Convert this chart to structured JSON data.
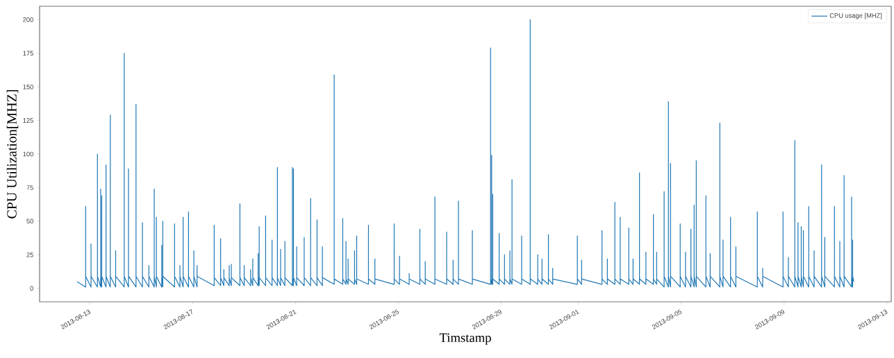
{
  "chart_data": {
    "type": "line",
    "xlabel": "Timstamp",
    "ylabel": "CPU Utilization[MHZ]",
    "x": [
      "2013-08-12T12:00",
      "2013-08-12T20:00",
      "2013-08-12T20:00",
      "2013-08-12T20:00",
      "2013-08-13T01:00",
      "2013-08-13T01:00",
      "2013-08-13T01:00",
      "2013-08-13T07:00",
      "2013-08-13T07:00",
      "2013-08-13T07:00",
      "2013-08-13T10:00",
      "2013-08-13T10:00",
      "2013-08-13T10:00",
      "2013-08-13T11:00",
      "2013-08-13T11:00",
      "2013-08-13T11:00",
      "2013-08-13T15:00",
      "2013-08-13T15:00",
      "2013-08-13T15:00",
      "2013-08-13T19:00",
      "2013-08-13T19:00",
      "2013-08-13T19:00",
      "2013-08-14T00:00",
      "2013-08-14T00:00",
      "2013-08-14T00:00",
      "2013-08-14T08:00",
      "2013-08-14T08:00",
      "2013-08-14T08:00",
      "2013-08-14T12:00",
      "2013-08-14T12:00",
      "2013-08-14T12:00",
      "2013-08-14T19:00",
      "2013-08-14T19:00",
      "2013-08-14T19:00",
      "2013-08-15T01:00",
      "2013-08-15T01:00",
      "2013-08-15T01:00",
      "2013-08-15T07:00",
      "2013-08-15T07:00",
      "2013-08-15T07:00",
      "2013-08-15T12:00",
      "2013-08-15T12:00",
      "2013-08-15T12:00",
      "2013-08-15T14:00",
      "2013-08-15T14:00",
      "2013-08-15T14:00",
      "2013-08-15T19:00",
      "2013-08-15T19:00",
      "2013-08-15T19:00",
      "2013-08-15T20:00",
      "2013-08-15T20:00",
      "2013-08-15T20:00",
      "2013-08-16T07:00",
      "2013-08-16T07:00",
      "2013-08-16T07:00",
      "2013-08-16T12:00",
      "2013-08-16T12:00",
      "2013-08-16T12:00",
      "2013-08-16T15:00",
      "2013-08-16T15:00",
      "2013-08-16T15:00",
      "2013-08-16T20:00",
      "2013-08-16T20:00",
      "2013-08-16T20:00",
      "2013-08-17T01:00",
      "2013-08-17T01:00",
      "2013-08-17T01:00",
      "2013-08-17T04:00",
      "2013-08-17T04:00",
      "2013-08-17T04:00",
      "2013-08-17T20:00",
      "2013-08-17T20:00",
      "2013-08-17T20:00",
      "2013-08-18T02:00",
      "2013-08-18T02:00",
      "2013-08-18T02:00",
      "2013-08-18T05:00",
      "2013-08-18T05:00",
      "2013-08-18T05:00",
      "2013-08-18T10:00",
      "2013-08-18T10:00",
      "2013-08-18T10:00",
      "2013-08-18T12:00",
      "2013-08-18T12:00",
      "2013-08-18T12:00",
      "2013-08-18T20:00",
      "2013-08-18T20:00",
      "2013-08-18T20:00",
      "2013-08-19T00:00",
      "2013-08-19T00:00",
      "2013-08-19T00:00",
      "2013-08-19T06:00",
      "2013-08-19T06:00",
      "2013-08-19T06:00",
      "2013-08-19T08:00",
      "2013-08-19T08:00",
      "2013-08-19T08:00",
      "2013-08-19T13:00",
      "2013-08-19T13:00",
      "2013-08-19T13:00",
      "2013-08-19T14:00",
      "2013-08-19T14:00",
      "2013-08-19T14:00",
      "2013-08-19T20:00",
      "2013-08-19T20:00",
      "2013-08-19T20:00",
      "2013-08-20T02:00",
      "2013-08-20T02:00",
      "2013-08-20T02:00",
      "2013-08-20T07:00",
      "2013-08-20T07:00",
      "2013-08-20T07:00",
      "2013-08-20T10:00",
      "2013-08-20T10:00",
      "2013-08-20T10:00",
      "2013-08-20T14:00",
      "2013-08-20T14:00",
      "2013-08-20T14:00",
      "2013-08-20T21:00",
      "2013-08-20T21:00",
      "2013-08-20T21:00",
      "2013-08-20T22:00",
      "2013-08-20T22:00",
      "2013-08-20T22:00",
      "2013-08-21T01:00",
      "2013-08-21T01:00",
      "2013-08-21T01:00",
      "2013-08-21T08:00",
      "2013-08-21T08:00",
      "2013-08-21T08:00",
      "2013-08-21T14:00",
      "2013-08-21T14:00",
      "2013-08-21T14:00",
      "2013-08-21T20:00",
      "2013-08-21T20:00",
      "2013-08-21T20:00",
      "2013-08-22T01:00",
      "2013-08-22T01:00",
      "2013-08-22T01:00",
      "2013-08-22T12:00",
      "2013-08-22T12:00",
      "2013-08-22T12:00",
      "2013-08-22T20:00",
      "2013-08-22T20:00",
      "2013-08-22T20:00",
      "2013-08-22T23:00",
      "2013-08-22T23:00",
      "2013-08-22T23:00",
      "2013-08-23T01:00",
      "2013-08-23T01:00",
      "2013-08-23T01:00",
      "2013-08-23T07:00",
      "2013-08-23T07:00",
      "2013-08-23T07:00",
      "2013-08-23T09:00",
      "2013-08-23T09:00",
      "2013-08-23T09:00",
      "2013-08-23T20:00",
      "2013-08-23T20:00",
      "2013-08-23T20:00",
      "2013-08-24T02:00",
      "2013-08-24T02:00",
      "2013-08-24T02:00",
      "2013-08-24T20:00",
      "2013-08-24T20:00",
      "2013-08-24T20:00",
      "2013-08-25T01:00",
      "2013-08-25T01:00",
      "2013-08-25T01:00",
      "2013-08-25T10:00",
      "2013-08-25T10:00",
      "2013-08-25T10:00",
      "2013-08-25T20:00",
      "2013-08-25T20:00",
      "2013-08-25T20:00",
      "2013-08-26T01:00",
      "2013-08-26T01:00",
      "2013-08-26T01:00",
      "2013-08-26T10:00",
      "2013-08-26T10:00",
      "2013-08-26T10:00",
      "2013-08-26T21:00",
      "2013-08-26T21:00",
      "2013-08-26T21:00",
      "2013-08-27T03:00",
      "2013-08-27T03:00",
      "2013-08-27T03:00",
      "2013-08-27T08:00",
      "2013-08-27T08:00",
      "2013-08-27T08:00",
      "2013-08-27T21:00",
      "2013-08-27T21:00",
      "2013-08-27T21:00",
      "2013-08-28T14:00",
      "2013-08-28T14:00",
      "2013-08-28T14:00",
      "2013-08-28T15:00",
      "2013-08-28T15:00",
      "2013-08-28T15:00",
      "2013-08-28T16:00",
      "2013-08-28T16:00",
      "2013-08-28T16:00",
      "2013-08-28T22:00",
      "2013-08-28T22:00",
      "2013-08-28T22:00",
      "2013-08-29T03:00",
      "2013-08-29T03:00",
      "2013-08-29T03:00",
      "2013-08-29T08:00",
      "2013-08-29T08:00",
      "2013-08-29T08:00",
      "2013-08-29T10:00",
      "2013-08-29T10:00",
      "2013-08-29T10:00",
      "2013-08-29T19:00",
      "2013-08-29T19:00",
      "2013-08-29T19:00",
      "2013-08-30T03:00",
      "2013-08-30T03:00",
      "2013-08-30T03:00",
      "2013-08-30T10:00",
      "2013-08-30T10:00",
      "2013-08-30T10:00",
      "2013-08-30T14:00",
      "2013-08-30T14:00",
      "2013-08-30T14:00",
      "2013-08-30T20:00",
      "2013-08-30T20:00",
      "2013-08-30T20:00",
      "2013-08-31T00:00",
      "2013-08-31T00:00",
      "2013-08-31T00:00",
      "2013-08-31T23:00",
      "2013-08-31T23:00",
      "2013-08-31T23:00",
      "2013-09-01T03:00",
      "2013-09-01T03:00",
      "2013-09-01T03:00",
      "2013-09-01T22:00",
      "2013-09-01T22:00",
      "2013-09-01T22:00",
      "2013-09-02T03:00",
      "2013-09-02T03:00",
      "2013-09-02T03:00",
      "2013-09-02T10:00",
      "2013-09-02T10:00",
      "2013-09-02T10:00",
      "2013-09-02T15:00",
      "2013-09-02T15:00",
      "2013-09-02T15:00",
      "2013-09-02T23:00",
      "2013-09-02T23:00",
      "2013-09-02T23:00",
      "2013-09-03T03:00",
      "2013-09-03T03:00",
      "2013-09-03T03:00",
      "2013-09-03T09:00",
      "2013-09-03T09:00",
      "2013-09-03T09:00",
      "2013-09-03T15:00",
      "2013-09-03T15:00",
      "2013-09-03T15:00",
      "2013-09-03T22:00",
      "2013-09-03T22:00",
      "2013-09-03T22:00",
      "2013-09-04T01:00",
      "2013-09-04T01:00",
      "2013-09-04T01:00",
      "2013-09-04T08:00",
      "2013-09-04T08:00",
      "2013-09-04T08:00",
      "2013-09-04T12:00",
      "2013-09-04T12:00",
      "2013-09-04T12:00",
      "2013-09-04T14:00",
      "2013-09-04T14:00",
      "2013-09-04T14:00",
      "2013-09-04T23:00",
      "2013-09-04T23:00",
      "2013-09-04T23:00",
      "2013-09-05T04:00",
      "2013-09-05T04:00",
      "2013-09-05T04:00",
      "2013-09-05T09:00",
      "2013-09-05T09:00",
      "2013-09-05T09:00",
      "2013-09-05T12:00",
      "2013-09-05T12:00",
      "2013-09-05T12:00",
      "2013-09-05T14:00",
      "2013-09-05T14:00",
      "2013-09-05T14:00",
      "2013-09-05T23:00",
      "2013-09-05T23:00",
      "2013-09-05T23:00",
      "2013-09-06T03:00",
      "2013-09-06T03:00",
      "2013-09-06T03:00",
      "2013-09-06T12:00",
      "2013-09-06T12:00",
      "2013-09-06T12:00",
      "2013-09-06T15:00",
      "2013-09-06T15:00",
      "2013-09-06T15:00",
      "2013-09-06T22:00",
      "2013-09-06T22:00",
      "2013-09-06T22:00",
      "2013-09-07T03:00",
      "2013-09-07T03:00",
      "2013-09-07T03:00",
      "2013-09-07T23:00",
      "2013-09-07T23:00",
      "2013-09-07T23:00",
      "2013-09-08T04:00",
      "2013-09-08T04:00",
      "2013-09-08T04:00",
      "2013-09-08T23:00",
      "2013-09-08T23:00",
      "2013-09-08T23:00",
      "2013-09-09T04:00",
      "2013-09-09T04:00",
      "2013-09-09T04:00",
      "2013-09-09T10:00",
      "2013-09-09T10:00",
      "2013-09-09T10:00",
      "2013-09-09T13:00",
      "2013-09-09T13:00",
      "2013-09-09T13:00",
      "2013-09-09T16:00",
      "2013-09-09T16:00",
      "2013-09-09T16:00",
      "2013-09-09T18:00",
      "2013-09-09T18:00",
      "2013-09-09T18:00",
      "2013-09-09T23:00",
      "2013-09-09T23:00",
      "2013-09-09T23:00",
      "2013-09-10T04:00",
      "2013-09-10T04:00",
      "2013-09-10T04:00",
      "2013-09-10T11:00",
      "2013-09-10T11:00",
      "2013-09-10T11:00",
      "2013-09-10T14:00",
      "2013-09-10T14:00",
      "2013-09-10T14:00",
      "2013-09-10T23:00",
      "2013-09-10T23:00",
      "2013-09-10T23:00",
      "2013-09-11T04:00",
      "2013-09-11T04:00",
      "2013-09-11T04:00",
      "2013-09-11T08:00",
      "2013-09-11T08:00",
      "2013-09-11T08:00",
      "2013-09-11T15:00",
      "2013-09-11T15:00",
      "2013-09-11T15:00",
      "2013-09-11T16:00",
      "2013-09-11T16:00",
      "2013-09-11T16:00",
      "2013-09-11T17:00"
    ],
    "series": [
      {
        "name": "CPU usage [MHZ]",
        "color": "#1f77b4",
        "values": [
          5,
          1,
          61,
          9,
          1,
          33,
          9,
          1,
          100,
          9,
          1,
          74,
          9,
          1,
          69,
          9,
          1,
          92,
          9,
          1,
          129,
          9,
          1,
          28,
          9,
          1,
          175,
          9,
          1,
          89,
          9,
          1,
          137,
          9,
          1,
          49,
          9,
          1,
          17,
          9,
          1,
          74,
          9,
          1,
          53,
          9,
          1,
          32,
          9,
          1,
          50,
          9,
          1,
          48,
          9,
          1,
          17,
          9,
          1,
          53,
          9,
          1,
          57,
          9,
          1,
          28,
          9,
          1,
          17,
          9,
          2,
          47,
          8,
          2,
          37,
          8,
          2,
          14,
          8,
          2,
          17,
          8,
          2,
          18,
          8,
          2,
          63,
          8,
          2,
          17,
          8,
          2,
          14,
          8,
          2,
          22,
          8,
          2,
          26,
          8,
          2,
          46,
          8,
          2,
          54,
          8,
          2,
          36,
          8,
          2,
          90,
          8,
          2,
          29,
          8,
          2,
          35,
          8,
          2,
          90,
          8,
          2,
          89,
          8,
          2,
          31,
          8,
          2,
          38,
          8,
          2,
          67,
          8,
          2,
          51,
          8,
          2,
          31,
          8,
          3,
          159,
          7,
          3,
          52,
          7,
          3,
          35,
          7,
          3,
          22,
          7,
          3,
          28,
          7,
          3,
          39,
          7,
          3,
          47,
          7,
          3,
          22,
          7,
          3,
          48,
          7,
          3,
          24,
          7,
          3,
          11,
          7,
          3,
          44,
          7,
          3,
          20,
          7,
          3,
          68,
          7,
          3,
          42,
          7,
          3,
          21,
          7,
          3,
          65,
          7,
          3,
          43,
          7,
          3,
          179,
          7,
          3,
          99,
          7,
          3,
          70,
          7,
          3,
          41,
          7,
          3,
          25,
          7,
          3,
          28,
          7,
          3,
          81,
          7,
          3,
          39,
          7,
          3,
          200,
          7,
          3,
          25,
          7,
          3,
          22,
          7,
          3,
          40,
          7,
          3,
          15,
          7,
          3,
          39,
          7,
          3,
          21,
          7,
          3,
          43,
          7,
          3,
          22,
          7,
          3,
          64,
          7,
          3,
          53,
          7,
          3,
          45,
          7,
          3,
          22,
          7,
          3,
          86,
          7,
          3,
          27,
          7,
          3,
          55,
          7,
          3,
          27,
          7,
          1,
          72,
          9,
          1,
          139,
          9,
          1,
          93,
          9,
          1,
          48,
          9,
          1,
          27,
          9,
          1,
          44,
          9,
          1,
          62,
          9,
          1,
          95,
          9,
          1,
          69,
          9,
          1,
          26,
          9,
          1,
          123,
          9,
          1,
          36,
          9,
          1,
          53,
          9,
          1,
          31,
          9,
          1,
          57,
          9,
          1,
          15,
          9,
          1,
          57,
          9,
          1,
          23,
          9,
          1,
          110,
          9,
          1,
          49,
          9,
          1,
          46,
          9,
          1,
          43,
          9,
          1,
          61,
          9,
          1,
          28,
          9,
          1,
          92,
          9,
          1,
          38,
          9,
          1,
          61,
          9,
          1,
          35,
          9,
          1,
          84,
          9,
          1,
          68,
          9,
          1,
          36,
          9,
          5
        ]
      }
    ],
    "xlim": [
      "2013-08-11T01:00",
      "2013-09-13T04:00"
    ],
    "xticks": [
      "2013-08-13",
      "2013-08-17",
      "2013-08-21",
      "2013-08-25",
      "2013-08-29",
      "2013-09-01",
      "2013-09-05",
      "2013-09-09",
      "2013-09-13"
    ],
    "ylim": [
      -10,
      210
    ],
    "yticks": [
      0,
      25,
      50,
      75,
      100,
      125,
      150,
      175,
      200
    ],
    "legend": "top right",
    "marker": "none",
    "line_style": "solid"
  }
}
